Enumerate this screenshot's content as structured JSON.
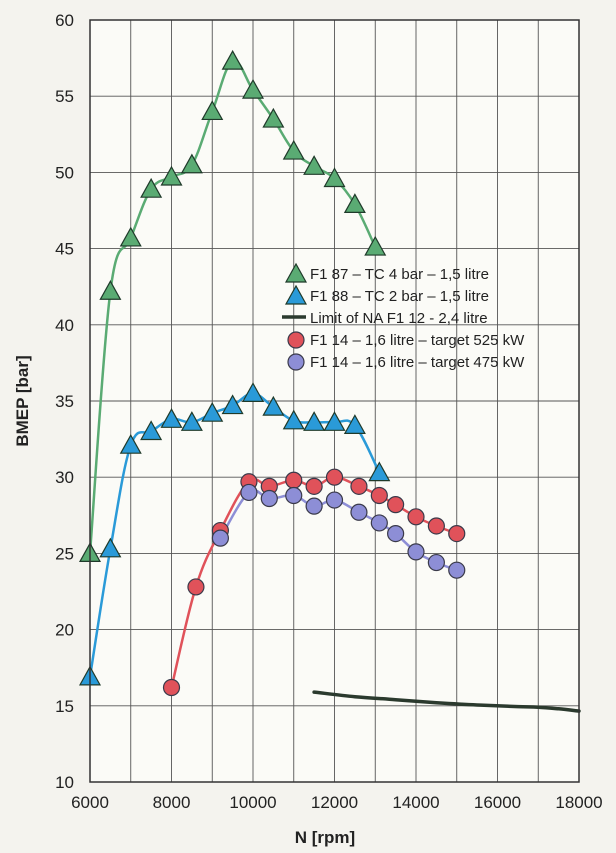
{
  "chart_data": {
    "type": "line",
    "xlabel": "N [rpm]",
    "ylabel": "BMEP [bar]",
    "xlim": [
      6000,
      18000
    ],
    "ylim": [
      10,
      60
    ],
    "x_ticks": [
      6000,
      8000,
      10000,
      12000,
      14000,
      16000,
      18000
    ],
    "y_ticks": [
      10,
      15,
      20,
      25,
      30,
      35,
      40,
      45,
      50,
      55,
      60
    ],
    "grid": true,
    "legend_position": "right",
    "series": [
      {
        "name": "F1 87 – TC 4 bar – 1,5 litre",
        "marker": "triangle",
        "color": "#5aab73",
        "line_color": "#5aab73",
        "points": [
          [
            6000,
            25
          ],
          [
            6500,
            42.2
          ],
          [
            7000,
            45.7
          ],
          [
            7500,
            48.9
          ],
          [
            8000,
            49.7
          ],
          [
            8500,
            50.5
          ],
          [
            9000,
            54
          ],
          [
            9500,
            57.3
          ],
          [
            10000,
            55.4
          ],
          [
            10500,
            53.5
          ],
          [
            11000,
            51.4
          ],
          [
            11500,
            50.4
          ],
          [
            12000,
            49.6
          ],
          [
            12500,
            47.9
          ],
          [
            13000,
            45.1
          ]
        ]
      },
      {
        "name": "F1 88 – TC 2 bar – 1,5 litre",
        "marker": "triangle",
        "color": "#2a9ad8",
        "line_color": "#2a9ad8",
        "points": [
          [
            6000,
            16.9
          ],
          [
            6500,
            25.3
          ],
          [
            7000,
            32.1
          ],
          [
            7500,
            33
          ],
          [
            8000,
            33.8
          ],
          [
            8500,
            33.6
          ],
          [
            9000,
            34.2
          ],
          [
            9500,
            34.7
          ],
          [
            10000,
            35.5
          ],
          [
            10500,
            34.6
          ],
          [
            11000,
            33.7
          ],
          [
            11500,
            33.6
          ],
          [
            12000,
            33.6
          ],
          [
            12500,
            33.4
          ],
          [
            13100,
            30.3
          ]
        ]
      },
      {
        "name": "Limit of NA F1 12 - 2,4 litre",
        "marker": "none",
        "color": "#2b3a2e",
        "line_color": "#2b3a2e",
        "points": [
          [
            11500,
            15.9
          ],
          [
            12500,
            15.6
          ],
          [
            13500,
            15.4
          ],
          [
            14500,
            15.2
          ],
          [
            15500,
            15.05
          ],
          [
            16500,
            14.95
          ],
          [
            17000,
            14.9
          ],
          [
            17500,
            14.8
          ],
          [
            18000,
            14.65
          ]
        ]
      },
      {
        "name": "F1 14 – 1,6 litre – target 525 kW",
        "marker": "circle",
        "color": "#e0525a",
        "line_color": "#e0525a",
        "points": [
          [
            8000,
            16.2
          ],
          [
            8600,
            22.8
          ],
          [
            9200,
            26.5
          ],
          [
            9900,
            29.7
          ],
          [
            10400,
            29.4
          ],
          [
            11000,
            29.8
          ],
          [
            11500,
            29.4
          ],
          [
            12000,
            30
          ],
          [
            12600,
            29.4
          ],
          [
            13100,
            28.8
          ],
          [
            13500,
            28.2
          ],
          [
            14000,
            27.4
          ],
          [
            14500,
            26.8
          ],
          [
            15000,
            26.3
          ]
        ]
      },
      {
        "name": "F1 14 – 1,6 litre – target 475 kW",
        "marker": "circle",
        "color": "#8d8ed6",
        "line_color": "#8d8ed6",
        "points": [
          [
            9200,
            26
          ],
          [
            9900,
            29
          ],
          [
            10400,
            28.6
          ],
          [
            11000,
            28.8
          ],
          [
            11500,
            28.1
          ],
          [
            12000,
            28.5
          ],
          [
            12600,
            27.7
          ],
          [
            13100,
            27
          ],
          [
            13500,
            26.3
          ],
          [
            14000,
            25.1
          ],
          [
            14500,
            24.4
          ],
          [
            15000,
            23.9
          ]
        ]
      }
    ]
  }
}
